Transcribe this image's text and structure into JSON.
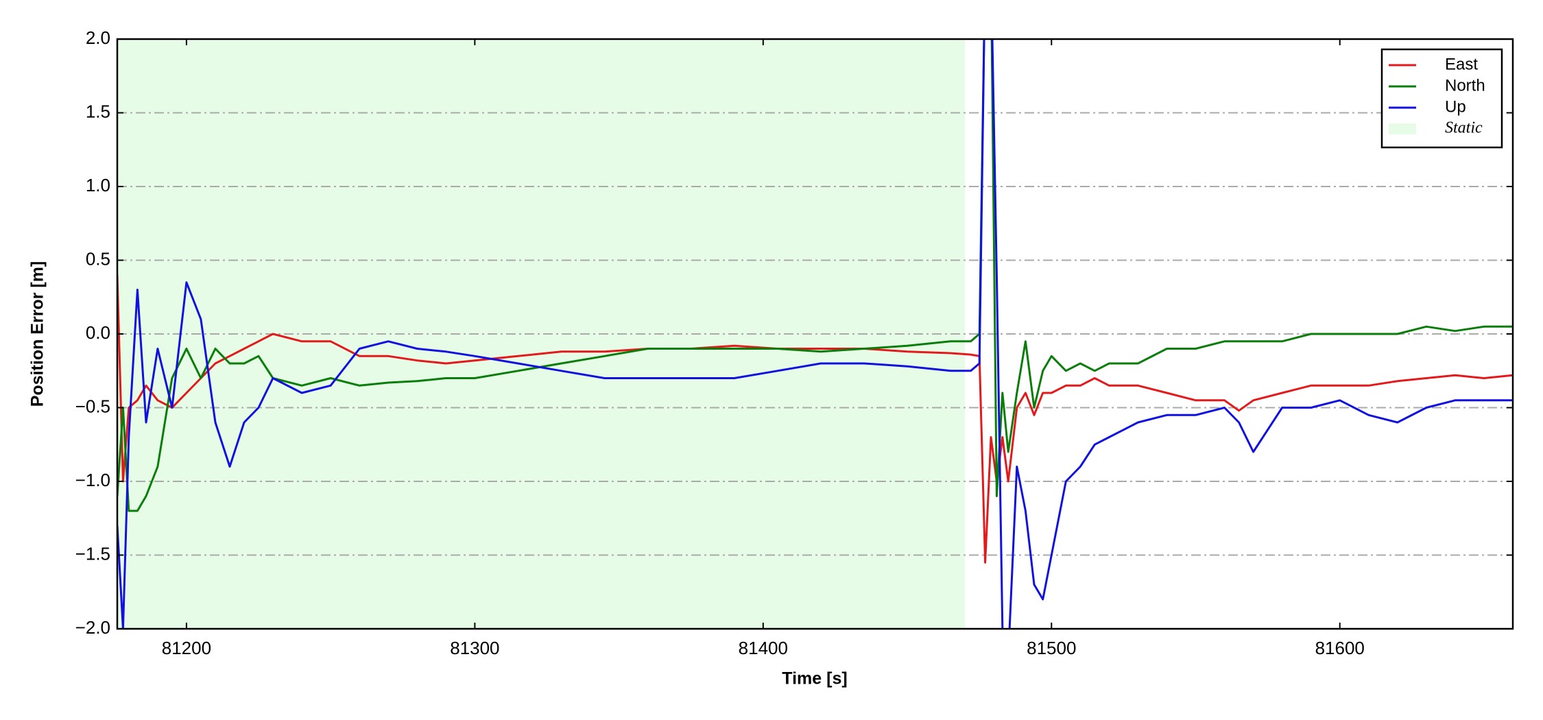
{
  "chart_data": {
    "type": "line",
    "xlabel": "Time [s]",
    "ylabel": "Position Error [m]",
    "x": [
      81176,
      81178,
      81180,
      81183,
      81186,
      81190,
      81195,
      81200,
      81205,
      81210,
      81215,
      81220,
      81225,
      81230,
      81240,
      81250,
      81260,
      81270,
      81280,
      81290,
      81300,
      81315,
      81330,
      81345,
      81360,
      81375,
      81390,
      81405,
      81420,
      81435,
      81450,
      81465,
      81472,
      81475,
      81477,
      81479,
      81481,
      81483,
      81485,
      81488,
      81491,
      81494,
      81497,
      81500,
      81505,
      81510,
      81515,
      81520,
      81530,
      81540,
      81550,
      81560,
      81565,
      81570,
      81580,
      81590,
      81600,
      81610,
      81620,
      81630,
      81640,
      81650,
      81660
    ],
    "series": [
      {
        "name": "East",
        "color": "#e31a1c",
        "values": [
          0.4,
          -1.0,
          -0.5,
          -0.45,
          -0.35,
          -0.45,
          -0.5,
          -0.4,
          -0.3,
          -0.2,
          -0.15,
          -0.1,
          -0.05,
          0.0,
          -0.05,
          -0.05,
          -0.15,
          -0.15,
          -0.18,
          -0.2,
          -0.18,
          -0.15,
          -0.12,
          -0.12,
          -0.1,
          -0.1,
          -0.08,
          -0.1,
          -0.1,
          -0.1,
          -0.12,
          -0.13,
          -0.14,
          -0.15,
          -1.55,
          -0.7,
          -1.0,
          -0.7,
          -1.0,
          -0.5,
          -0.4,
          -0.55,
          -0.4,
          -0.4,
          -0.35,
          -0.35,
          -0.3,
          -0.35,
          -0.35,
          -0.4,
          -0.45,
          -0.45,
          -0.52,
          -0.45,
          -0.4,
          -0.35,
          -0.35,
          -0.35,
          -0.32,
          -0.3,
          -0.28,
          -0.3,
          -0.28
        ]
      },
      {
        "name": "North",
        "color": "#0a7d0a",
        "values": [
          -1.1,
          -0.5,
          -1.2,
          -1.2,
          -1.1,
          -0.9,
          -0.3,
          -0.1,
          -0.3,
          -0.1,
          -0.2,
          -0.2,
          -0.15,
          -0.3,
          -0.35,
          -0.3,
          -0.35,
          -0.33,
          -0.32,
          -0.3,
          -0.3,
          -0.25,
          -0.2,
          -0.15,
          -0.1,
          -0.1,
          -0.1,
          -0.1,
          -0.12,
          -0.1,
          -0.08,
          -0.05,
          -0.05,
          0.0,
          2.5,
          2.5,
          -1.1,
          -0.4,
          -0.8,
          -0.4,
          -0.05,
          -0.5,
          -0.25,
          -0.15,
          -0.25,
          -0.2,
          -0.25,
          -0.2,
          -0.2,
          -0.1,
          -0.1,
          -0.05,
          -0.05,
          -0.05,
          -0.05,
          0.0,
          0.0,
          0.0,
          0.0,
          0.05,
          0.02,
          0.05,
          0.05
        ]
      },
      {
        "name": "Up",
        "color": "#1010e0",
        "values": [
          -1.3,
          -2.0,
          -0.7,
          0.3,
          -0.6,
          -0.1,
          -0.5,
          0.35,
          0.1,
          -0.6,
          -0.9,
          -0.6,
          -0.5,
          -0.3,
          -0.4,
          -0.35,
          -0.1,
          -0.05,
          -0.1,
          -0.12,
          -0.15,
          -0.2,
          -0.25,
          -0.3,
          -0.3,
          -0.3,
          -0.3,
          -0.25,
          -0.2,
          -0.2,
          -0.22,
          -0.25,
          -0.25,
          -0.2,
          2.5,
          2.5,
          0.4,
          -2.0,
          -2.2,
          -0.9,
          -1.2,
          -1.7,
          -1.8,
          -1.5,
          -1.0,
          -0.9,
          -0.75,
          -0.7,
          -0.6,
          -0.55,
          -0.55,
          -0.5,
          -0.6,
          -0.8,
          -0.5,
          -0.5,
          -0.45,
          -0.55,
          -0.6,
          -0.5,
          -0.45,
          -0.45,
          -0.45
        ]
      }
    ],
    "spans": [
      {
        "name": "Static",
        "color": "#e6fce6",
        "xmin": 81176,
        "xmax": 81470
      }
    ],
    "xlim": [
      81176,
      81660
    ],
    "ylim": [
      -2.0,
      2.0
    ],
    "xticks": [
      81200,
      81300,
      81400,
      81500,
      81600
    ],
    "yticks": [
      {
        "value": -2.0,
        "label": "−2.0"
      },
      {
        "value": -1.5,
        "label": "−1.5"
      },
      {
        "value": -1.0,
        "label": "−1.0"
      },
      {
        "value": -0.5,
        "label": "−0.5"
      },
      {
        "value": 0.0,
        "label": "0.0"
      },
      0.5,
      {
        "value": 1.0,
        "label": "1.0"
      },
      1.5,
      {
        "value": 2.0,
        "label": "2.0"
      }
    ],
    "grid": true,
    "legend": "upper right"
  }
}
